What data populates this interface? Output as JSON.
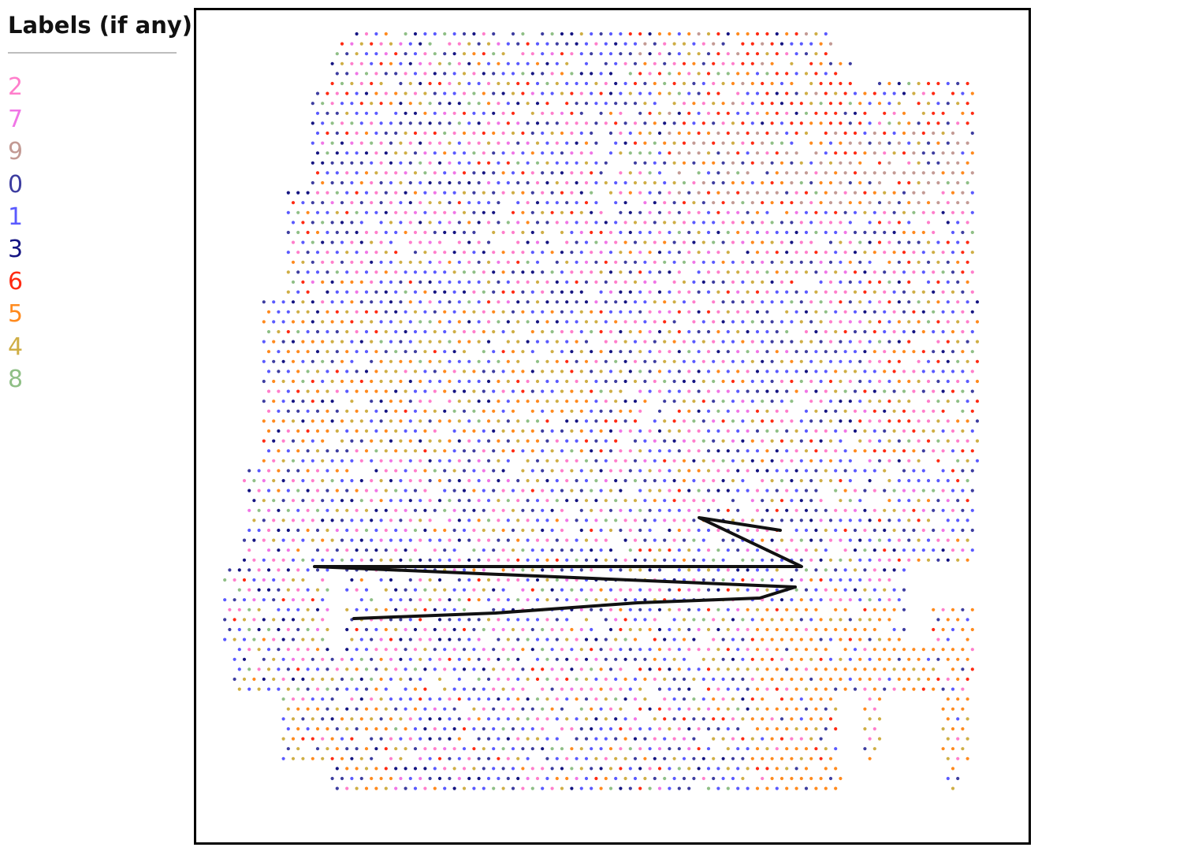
{
  "legend": {
    "title": "Labels (if any)",
    "items": [
      {
        "label": "2",
        "color": "#ff7ecb"
      },
      {
        "label": "7",
        "color": "#f075e6"
      },
      {
        "label": "9",
        "color": "#c39a94"
      },
      {
        "label": "0",
        "color": "#3d3da0"
      },
      {
        "label": "1",
        "color": "#5a5aff"
      },
      {
        "label": "3",
        "color": "#141482"
      },
      {
        "label": "6",
        "color": "#ff2a12"
      },
      {
        "label": "5",
        "color": "#ff8a1e"
      },
      {
        "label": "4",
        "color": "#cfae45"
      },
      {
        "label": "8",
        "color": "#8fbf86"
      }
    ]
  },
  "canvas": {
    "name": "spot-annotation-canvas",
    "stroke_color": "#111111"
  }
}
